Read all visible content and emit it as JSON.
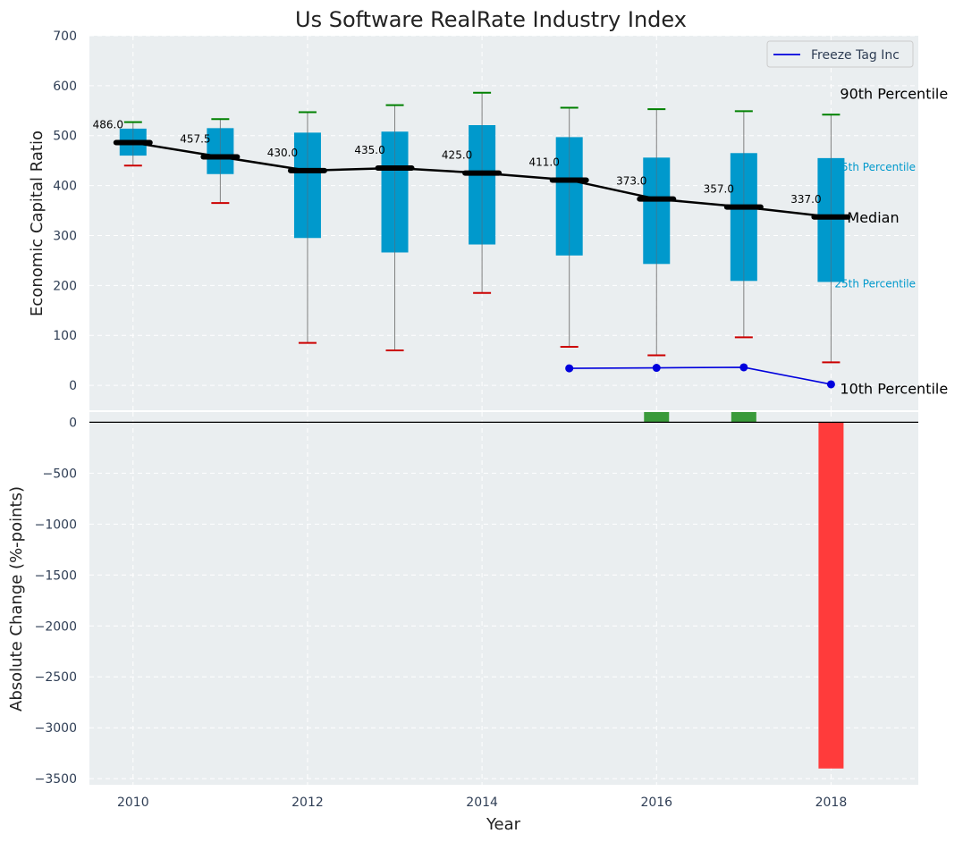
{
  "chart_data": [
    {
      "type": "box",
      "title": "Us Software RealRate Industry Index",
      "xlabel": "",
      "ylabel": "Economic Capital Ratio",
      "ylim": [
        -50,
        700
      ],
      "xlim": [
        2009.5,
        2019
      ],
      "y_ticks": [
        "0",
        "100",
        "200",
        "300",
        "400",
        "500",
        "600",
        "700"
      ],
      "grid": true,
      "colors": {
        "background": "#eaeef0",
        "box": "#0099cc",
        "median_line": "#000000",
        "p90_cap": "#008000",
        "p10_cap": "#cc0000",
        "whisker": "#808080",
        "company_line": "#0000dd"
      },
      "years": [
        2010,
        2011,
        2012,
        2013,
        2014,
        2015,
        2016,
        2017,
        2018
      ],
      "p10": [
        440,
        365,
        85,
        70,
        185,
        77,
        60,
        96,
        46
      ],
      "p25": [
        460,
        423,
        295,
        266,
        282,
        260,
        243,
        209,
        207
      ],
      "median": [
        486.0,
        457.5,
        430.0,
        435.0,
        425.0,
        411.0,
        373.0,
        357.0,
        337.0
      ],
      "median_labels": [
        "486.0",
        "457.5",
        "430.0",
        "435.0",
        "425.0",
        "411.0",
        "373.0",
        "357.0",
        "337.0"
      ],
      "p75": [
        514,
        515,
        506,
        508,
        521,
        497,
        456,
        465,
        455
      ],
      "p90": [
        527,
        533,
        547,
        561,
        586,
        556,
        553,
        549,
        542
      ],
      "series": [
        {
          "name": "Freeze Tag Inc",
          "x": [
            2015,
            2016,
            2017,
            2018
          ],
          "values": [
            34,
            35,
            36,
            2
          ]
        }
      ],
      "legend": {
        "position": "top-right",
        "entries": [
          "Freeze Tag Inc"
        ]
      },
      "annotations": {
        "p90": "90th Percentile",
        "p75": "75th Percentile",
        "median": "Median",
        "p25": "25th Percentile",
        "p10": "10th Percentile"
      }
    },
    {
      "type": "bar",
      "xlabel": "Year",
      "ylabel": "Absolute Change (%-points)",
      "ylim": [
        -3560,
        100
      ],
      "x_ticks": [
        "2010",
        "2012",
        "2014",
        "2016",
        "2018"
      ],
      "y_ticks": [
        "0",
        "−500",
        "−1000",
        "−1500",
        "−2000",
        "−2500",
        "−3000",
        "−3500"
      ],
      "grid": true,
      "categories": [
        2016,
        2017,
        2018
      ],
      "values": [
        100,
        100,
        -3400
      ],
      "colors": {
        "positive": "#3a9a3a",
        "negative": "#ff3b3b",
        "zero_line": "#000000"
      }
    }
  ]
}
